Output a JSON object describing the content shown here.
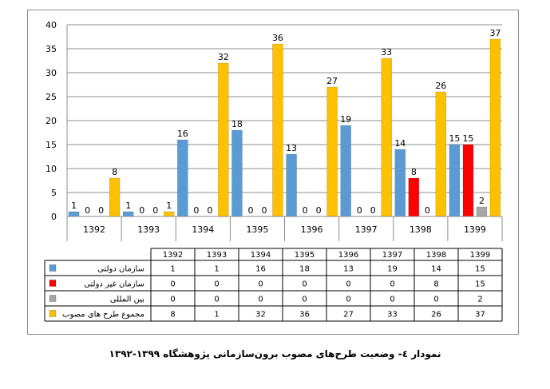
{
  "chart_data": {
    "type": "bar",
    "categories": [
      "1392",
      "1393",
      "1394",
      "1395",
      "1396",
      "1397",
      "1398",
      "1399"
    ],
    "series": [
      {
        "name": "سازمان دولتی",
        "color": "#5b9bd5",
        "values": [
          1,
          1,
          16,
          18,
          13,
          19,
          14,
          15
        ]
      },
      {
        "name": "سازمان غیر دولتی",
        "color": "#ff0000",
        "values": [
          0,
          0,
          0,
          0,
          0,
          0,
          8,
          15
        ]
      },
      {
        "name": "بین المللی",
        "color": "#a6a6a6",
        "values": [
          0,
          0,
          0,
          0,
          0,
          0,
          0,
          2
        ]
      },
      {
        "name": "مجموع طرح های مصوب",
        "color": "#ffc000",
        "values": [
          8,
          1,
          32,
          36,
          27,
          33,
          26,
          37
        ]
      }
    ],
    "ylim": [
      0,
      40
    ],
    "yticks": [
      0,
      5,
      10,
      15,
      20,
      25,
      30,
      35,
      40
    ],
    "grid": true,
    "legend": "data-table",
    "title": "",
    "xlabel": "",
    "ylabel": ""
  },
  "caption": "نمودار ٤- وضعیت طرح‌های مصوب برون‌سازمانی پژوهشگاه ١٣٩٩-١٣٩٢"
}
